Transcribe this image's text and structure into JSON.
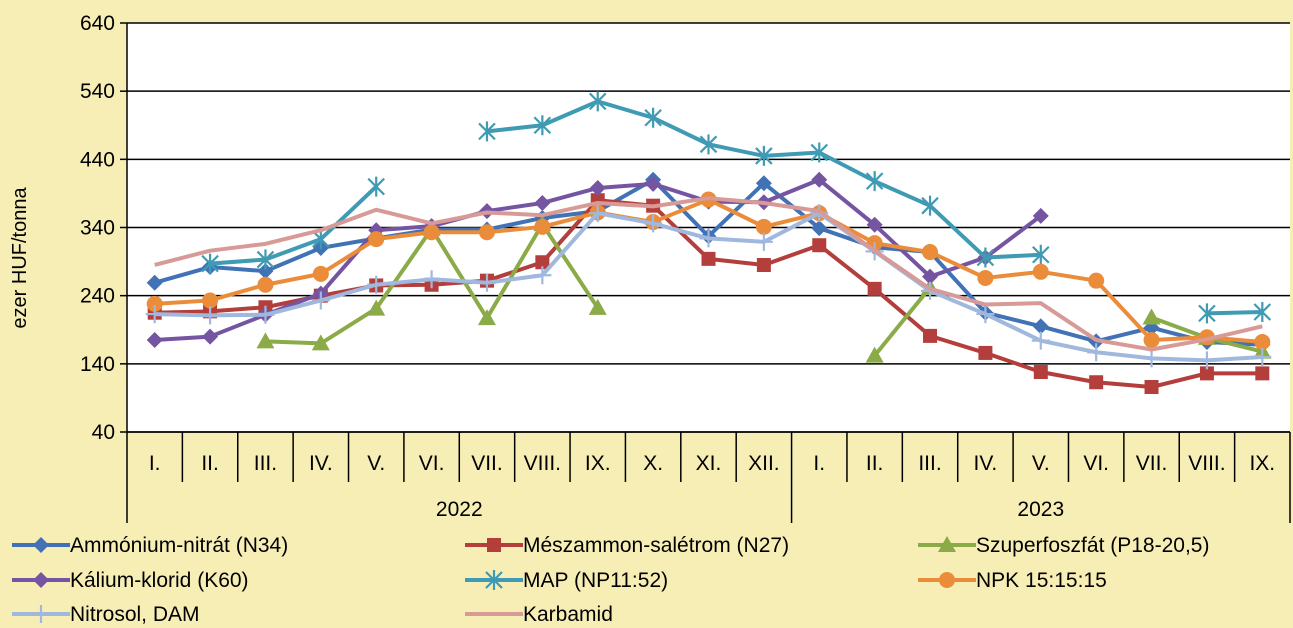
{
  "chart_data": {
    "type": "line",
    "ylabel": "ezer HUF/tonna",
    "ylim": [
      40,
      640
    ],
    "yticks": [
      40,
      140,
      240,
      340,
      440,
      540,
      640
    ],
    "grid": "horizontal",
    "legend_position": "bottom",
    "categories": [
      "I.",
      "II.",
      "III.",
      "IV.",
      "V.",
      "VI.",
      "VII.",
      "VIII.",
      "IX.",
      "X.",
      "XI.",
      "XII.",
      "I.",
      "II.",
      "III.",
      "IV.",
      "V.",
      "VI.",
      "VII.",
      "VIII.",
      "IX."
    ],
    "years": [
      {
        "label": "2022",
        "start": 0,
        "end": 11
      },
      {
        "label": "2023",
        "start": 12,
        "end": 20
      }
    ],
    "series": [
      {
        "name": "Ammónium-nitrát (N34)",
        "color": "#4172b5",
        "marker": "diamond",
        "values": [
          259,
          282,
          276,
          310,
          324,
          337,
          337,
          354,
          364,
          410,
          327,
          405,
          339,
          311,
          304,
          215,
          195,
          173,
          193,
          172,
          168
        ]
      },
      {
        "name": "Mészammon-salétrom (N27)",
        "color": "#b33e3b",
        "marker": "square",
        "values": [
          215,
          217,
          223,
          240,
          255,
          256,
          262,
          289,
          380,
          372,
          294,
          285,
          314,
          250,
          181,
          156,
          128,
          113,
          106,
          126,
          126
        ]
      },
      {
        "name": "Szuperfoszfát (P18-20,5)",
        "color": "#8aab47",
        "marker": "triangle",
        "values": [
          null,
          null,
          173,
          170,
          221,
          338,
          207,
          345,
          222,
          null,
          null,
          null,
          null,
          152,
          252,
          null,
          null,
          null,
          208,
          178,
          158
        ]
      },
      {
        "name": "Kálium-klorid (K60)",
        "color": "#7555a1",
        "marker": "diamond",
        "values": [
          175,
          180,
          212,
          243,
          336,
          342,
          364,
          376,
          398,
          404,
          378,
          377,
          410,
          344,
          268,
          296,
          357,
          null,
          null,
          null,
          null
        ]
      },
      {
        "name": "MAP (NP11:52)",
        "color": "#3f9bb3",
        "marker": "star",
        "values": [
          null,
          287,
          293,
          323,
          400,
          null,
          481,
          490,
          525,
          501,
          462,
          445,
          450,
          408,
          372,
          296,
          300,
          null,
          null,
          214,
          216
        ]
      },
      {
        "name": "NPK 15:15:15",
        "color": "#ea8c39",
        "marker": "circle",
        "values": [
          228,
          233,
          256,
          272,
          323,
          333,
          333,
          341,
          362,
          348,
          381,
          341,
          361,
          317,
          304,
          266,
          275,
          262,
          175,
          179,
          172
        ]
      },
      {
        "name": "Nitrosol, DAM",
        "color": "#a0b7de",
        "marker": "plus",
        "values": [
          213,
          211,
          212,
          233,
          256,
          264,
          259,
          270,
          361,
          346,
          324,
          319,
          361,
          305,
          247,
          213,
          174,
          157,
          148,
          145,
          150
        ]
      },
      {
        "name": "Karbamid",
        "color": "#d79a97",
        "marker": "none",
        "values": [
          285,
          306,
          316,
          336,
          366,
          346,
          362,
          358,
          376,
          371,
          383,
          376,
          364,
          306,
          250,
          227,
          229,
          175,
          161,
          176,
          195
        ]
      }
    ]
  }
}
